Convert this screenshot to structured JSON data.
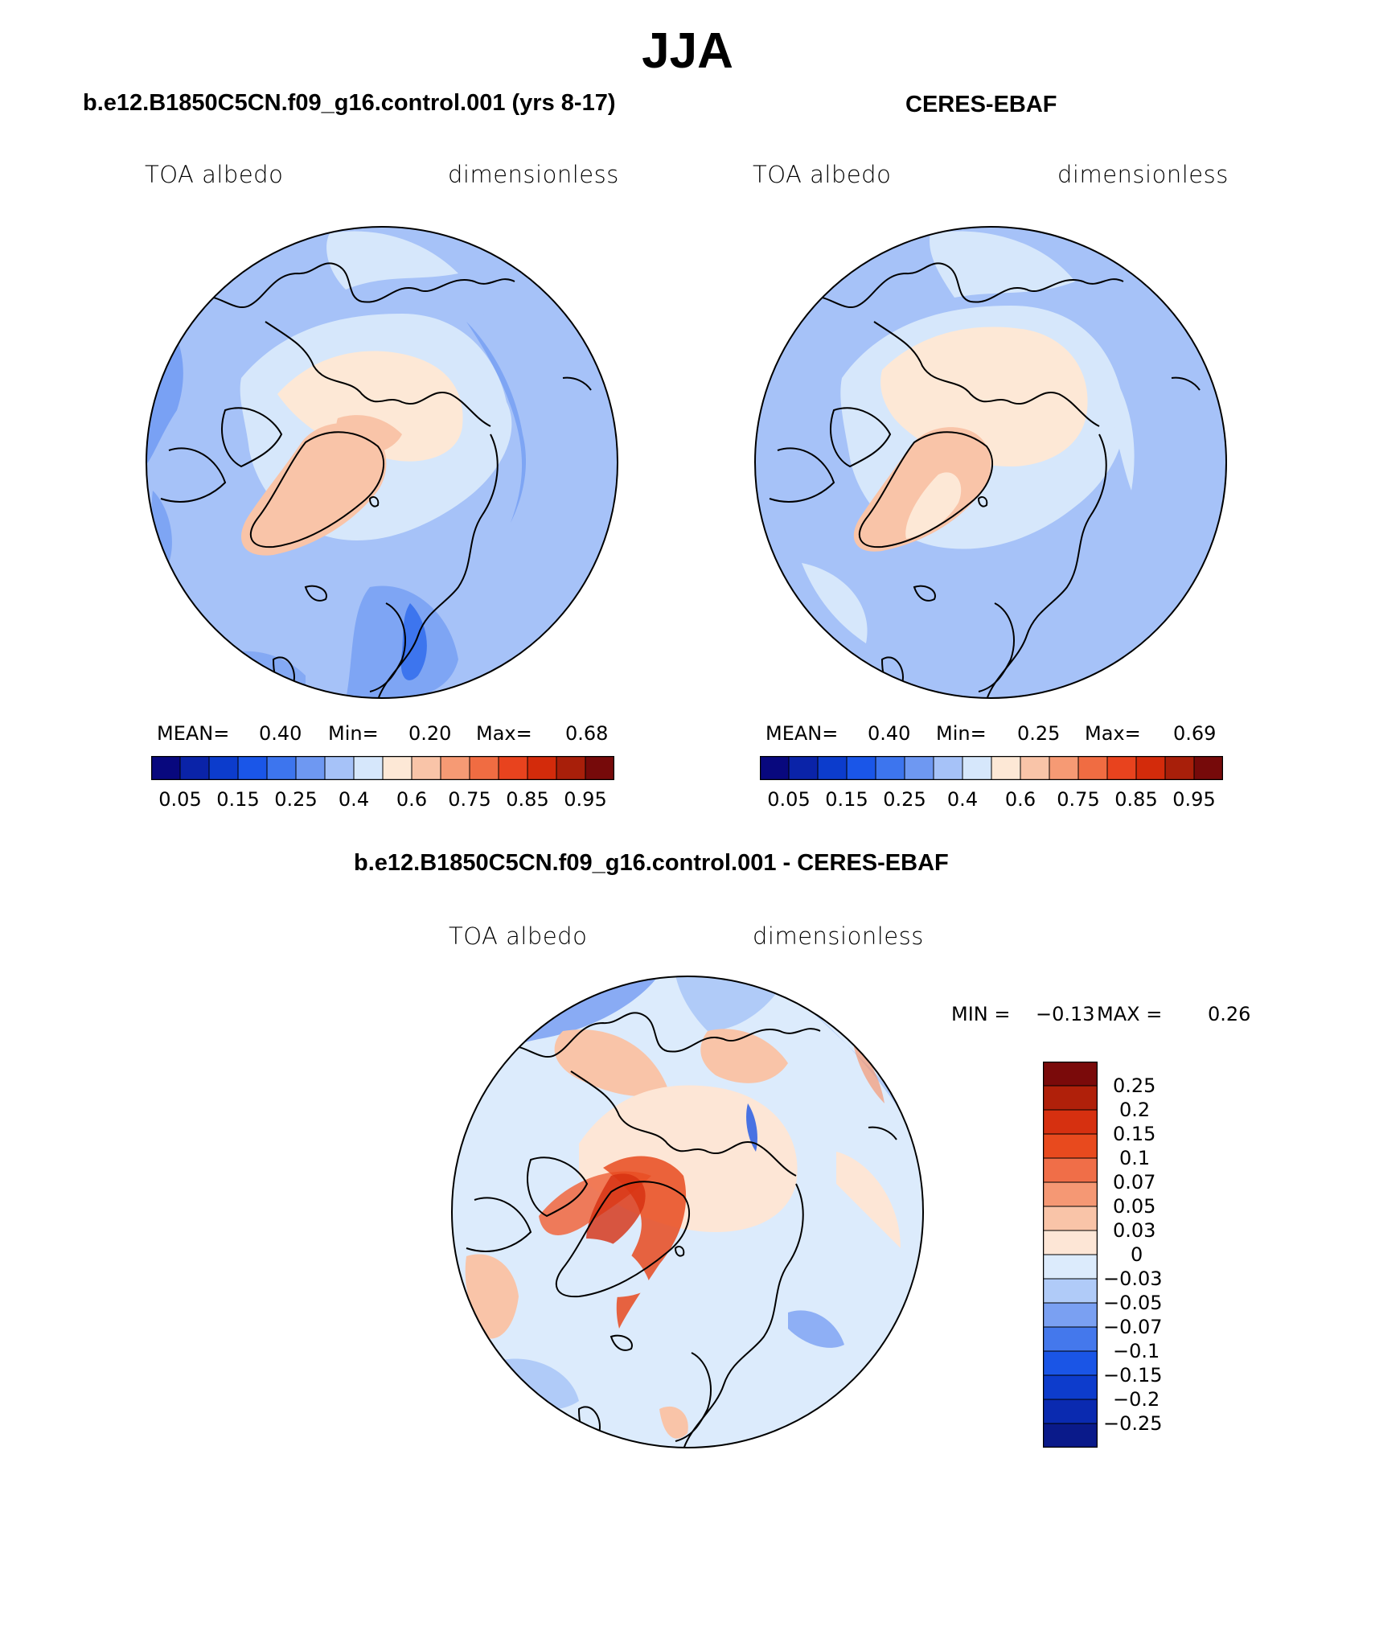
{
  "title": "JJA",
  "colors": {
    "scale": [
      "#08087e",
      "#0a23a8",
      "#0c3ccc",
      "#1a56e8",
      "#3d75ee",
      "#6e98f2",
      "#a6c2f8",
      "#d6e7fb",
      "#fde8d6",
      "#f9c4a8",
      "#f69a74",
      "#f06c42",
      "#e8431e",
      "#d32b0b",
      "#a81f0a",
      "#760a0a"
    ],
    "diff_scale": [
      "#0a1a8a",
      "#0a2ab0",
      "#0d3ccc",
      "#1a55e6",
      "#4478ec",
      "#7aa0f2",
      "#b0cbf8",
      "#dcebfc",
      "#fde6d6",
      "#f9c4a8",
      "#f59874",
      "#f06e48",
      "#e84a1e",
      "#d63010",
      "#b0200a",
      "#7a0a0a"
    ]
  },
  "panels": [
    {
      "title": "b.e12.B1850C5CN.f09_g16.control.001 (yrs 8-17)",
      "left_label": "TOA albedo",
      "right_label": "dimensionless",
      "stats": {
        "mean_label": "MEAN=",
        "mean": "0.40",
        "min_label": "Min=",
        "min": "0.20",
        "max_label": "Max=",
        "max": "0.68"
      },
      "ticks": [
        "0.05",
        "0.15",
        "0.25",
        "0.4",
        "0.6",
        "0.75",
        "0.85",
        "0.95"
      ]
    },
    {
      "title": "CERES-EBAF",
      "left_label": "TOA albedo",
      "right_label": "dimensionless",
      "stats": {
        "mean_label": "MEAN=",
        "mean": "0.40",
        "min_label": "Min=",
        "min": "0.25",
        "max_label": "Max=",
        "max": "0.69"
      },
      "ticks": [
        "0.05",
        "0.15",
        "0.25",
        "0.4",
        "0.6",
        "0.75",
        "0.85",
        "0.95"
      ]
    }
  ],
  "diff": {
    "title": "b.e12.B1850C5CN.f09_g16.control.001 - CERES-EBAF",
    "left_label": "TOA albedo",
    "right_label": "dimensionless",
    "min_label": "MIN =",
    "min": "−0.13",
    "max_label": "MAX =",
    "max": "0.26",
    "ticks": [
      "0.25",
      "0.2",
      "0.15",
      "0.1",
      "0.07",
      "0.05",
      "0.03",
      "0",
      "−0.03",
      "−0.05",
      "−0.07",
      "−0.1",
      "−0.15",
      "−0.2",
      "−0.25"
    ]
  }
}
